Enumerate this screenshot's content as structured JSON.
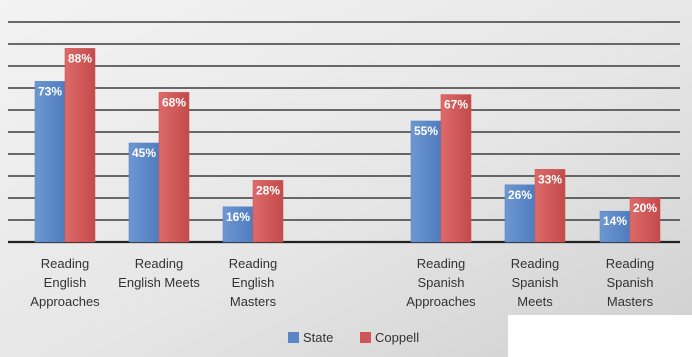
{
  "chart_data": {
    "type": "bar",
    "categories": [
      "Reading English Approaches",
      "Reading English Meets",
      "Reading English Masters",
      "Reading Spanish Approaches",
      "Reading Spanish Meets",
      "Reading Spanish Masters"
    ],
    "category_label_lines": [
      [
        "Reading",
        "English",
        "Approaches"
      ],
      [
        "Reading",
        "English Meets"
      ],
      [
        "Reading",
        "English",
        "Masters"
      ],
      [
        "Reading",
        "Spanish",
        "Approaches"
      ],
      [
        "Reading",
        "Spanish",
        "Meets"
      ],
      [
        "Reading",
        "Spanish",
        "Masters"
      ]
    ],
    "series": [
      {
        "name": "State",
        "values": [
          73,
          45,
          16,
          55,
          26,
          14
        ],
        "labels": [
          "73%",
          "45%",
          "16%",
          "55%",
          "26%",
          "14%"
        ],
        "color": "#5b86c6"
      },
      {
        "name": "Coppell",
        "values": [
          88,
          68,
          28,
          67,
          33,
          20
        ],
        "labels": [
          "88%",
          "68%",
          "28%",
          "67%",
          "33%",
          "20%"
        ],
        "color": "#cf5656"
      }
    ],
    "ylim": [
      0,
      100
    ],
    "grid": true,
    "legend_position": "bottom",
    "title": "",
    "xlabel": "",
    "ylabel": ""
  }
}
